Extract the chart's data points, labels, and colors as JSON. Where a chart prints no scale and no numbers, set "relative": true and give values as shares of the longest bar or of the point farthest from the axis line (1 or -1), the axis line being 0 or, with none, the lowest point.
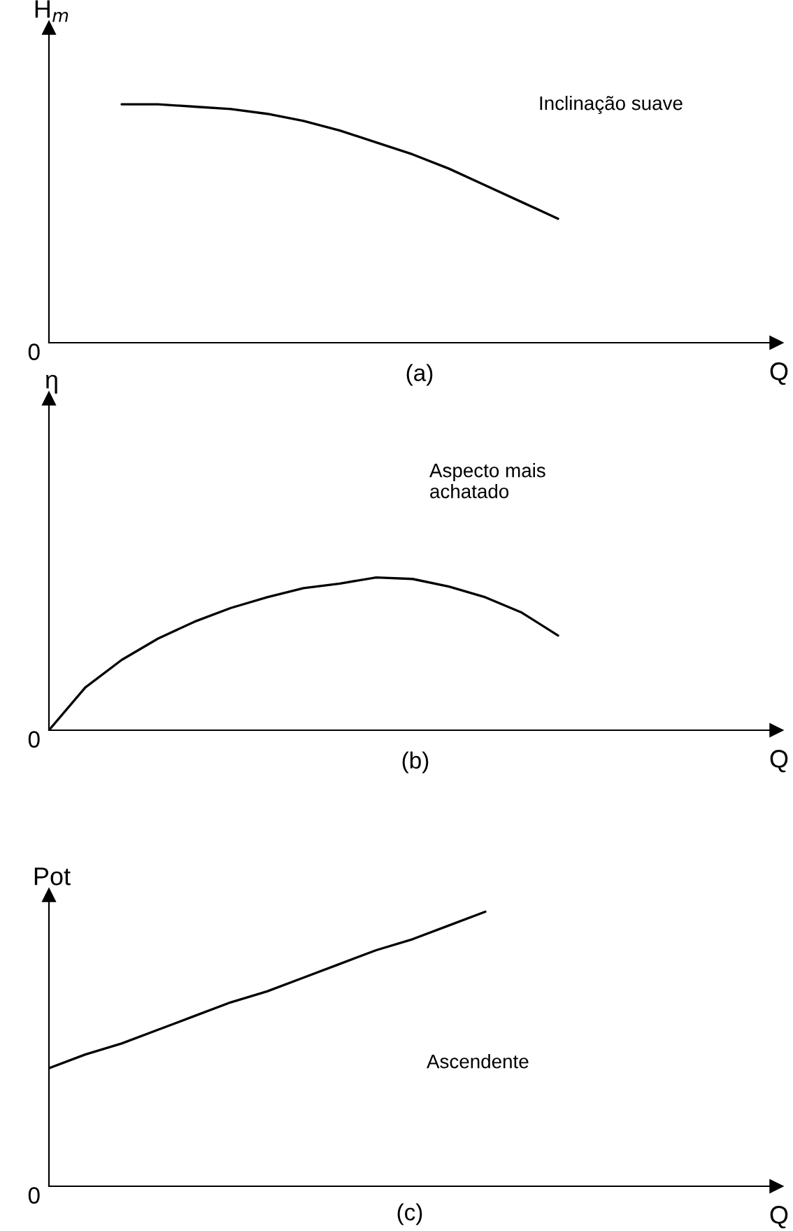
{
  "chart_data": [
    {
      "type": "line",
      "relative": true,
      "ylabel": "H$_{m}$",
      "xlabel": "Q",
      "color": "#000000",
      "categories": [
        null,
        null,
        null,
        null,
        null,
        null,
        null,
        null,
        null,
        null,
        null,
        null,
        null,
        null,
        null,
        null,
        null,
        null,
        null,
        null,
        null
      ],
      "values": [
        null,
        null,
        1.0,
        1.0,
        0.99,
        0.98,
        0.96,
        0.93,
        0.89,
        0.84,
        0.79,
        0.73,
        0.66,
        0.59,
        0.52,
        null,
        null,
        null,
        null,
        null,
        null
      ],
      "annotations": [
        "Inclinação suave",
        "(a)",
        "0"
      ]
    },
    {
      "type": "line",
      "relative": true,
      "ylabel": "η",
      "xlabel": "Q",
      "color": "#000000",
      "categories": [
        null,
        null,
        null,
        null,
        null,
        null,
        null,
        null,
        null,
        null,
        null,
        null,
        null,
        null,
        null,
        null,
        null,
        null,
        null,
        null,
        null
      ],
      "values": [
        0,
        0.28,
        0.46,
        0.6,
        0.71,
        0.8,
        0.87,
        0.93,
        0.96,
        1.0,
        0.99,
        0.94,
        0.87,
        0.77,
        0.62,
        null,
        null,
        null,
        null,
        null,
        null
      ],
      "annotations": [
        "Aspecto mais\nachatado",
        "(b)",
        "0"
      ]
    },
    {
      "type": "line",
      "relative": true,
      "ylabel": "Pot",
      "xlabel": "Q",
      "color": "#000000",
      "categories": [
        null,
        null,
        null,
        null,
        null,
        null,
        null,
        null,
        null,
        null,
        null,
        null,
        null,
        null,
        null,
        null,
        null,
        null,
        null,
        null,
        null
      ],
      "values": [
        0.43,
        0.48,
        0.52,
        0.57,
        0.62,
        0.67,
        0.71,
        0.76,
        0.81,
        0.86,
        0.9,
        0.95,
        1.0,
        null,
        null,
        null,
        null,
        null,
        null,
        null,
        null
      ],
      "annotations": [
        "Ascendente",
        "(c)",
        "0"
      ]
    }
  ]
}
